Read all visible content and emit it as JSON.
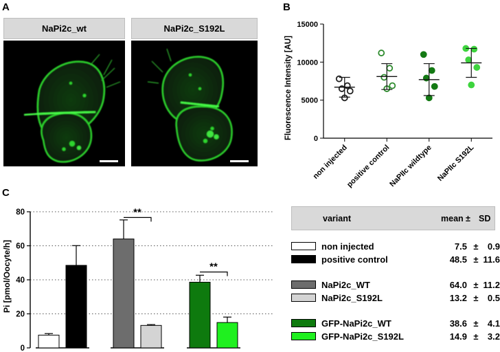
{
  "panels": {
    "a": "A",
    "b": "B",
    "c": "C"
  },
  "images": {
    "left_label": "NaPi2c_wt",
    "right_label": "NaPi2c_S192L"
  },
  "chart_data": [
    {
      "type": "scatter",
      "ylabel": "Fluorescence Intensity [AU]",
      "ylim": [
        0,
        15000
      ],
      "yticks": [
        0,
        5000,
        10000,
        15000
      ],
      "categories": [
        "non injected",
        "positive control",
        "NaPIIc wildtype",
        "NaPIIc S192L"
      ],
      "colors": [
        "#222222",
        "#2e8b2e",
        "#147a14",
        "#3ed43e"
      ],
      "filled": [
        false,
        false,
        true,
        true
      ],
      "points": [
        [
          7800,
          6900,
          6500,
          6200,
          5300
        ],
        [
          11200,
          9200,
          8000,
          6900,
          6500
        ],
        [
          11000,
          8900,
          7900,
          6800,
          5300
        ],
        [
          11800,
          11700,
          10300,
          9300,
          7000
        ]
      ],
      "mean": [
        6700,
        8100,
        7700,
        9900
      ],
      "sd": [
        1300,
        1700,
        2100,
        1900
      ]
    },
    {
      "type": "bar",
      "ylabel": "Pi [pmol/Oocyte/h]",
      "ylim": [
        0,
        80
      ],
      "yticks": [
        0,
        20,
        40,
        60,
        80
      ],
      "categories": [
        "non injected",
        "positive control",
        "NaPi2c_WT",
        "NaPi2c_S192L",
        "GFP-NaPi2c_WT",
        "GFP-NaPi2c_S192L"
      ],
      "values": [
        7.5,
        48.5,
        64.0,
        13.2,
        38.6,
        14.9
      ],
      "errors": [
        0.9,
        11.6,
        11.2,
        0.5,
        4.1,
        3.2
      ],
      "colors": [
        "#ffffff",
        "#000000",
        "#6d6d6d",
        "#d4d4d4",
        "#0e7a0e",
        "#1ff01f"
      ],
      "groups": [
        [
          0,
          1
        ],
        [
          2,
          3
        ],
        [
          4,
          5
        ]
      ],
      "annotations": [
        {
          "text": "**",
          "between": [
            2,
            3
          ]
        },
        {
          "text": "**",
          "between": [
            4,
            5
          ]
        }
      ],
      "grid": "dotted horizontal"
    }
  ],
  "table": {
    "headers": {
      "variant": "variant",
      "mean": "mean",
      "pm": "±",
      "sd": "SD"
    },
    "rows": [
      {
        "name": "non injected",
        "mean": "7.5",
        "pm": "±",
        "sd": "0.9",
        "color": "#ffffff"
      },
      {
        "name": "positive control",
        "mean": "48.5",
        "pm": "±",
        "sd": "11.6",
        "color": "#000000"
      },
      {
        "name": "NaPi2c_WT",
        "mean": "64.0",
        "pm": "±",
        "sd": "11.2",
        "color": "#6d6d6d"
      },
      {
        "name": "NaPi2c_S192L",
        "mean": "13.2",
        "pm": "±",
        "sd": "0.5",
        "color": "#d4d4d4"
      },
      {
        "name": "GFP-NaPi2c_WT",
        "mean": "38.6",
        "pm": "±",
        "sd": "4.1",
        "color": "#0e7a0e"
      },
      {
        "name": "GFP-NaPi2c_S192L",
        "mean": "14.9",
        "pm": "±",
        "sd": "3.2",
        "color": "#1ff01f"
      }
    ]
  }
}
